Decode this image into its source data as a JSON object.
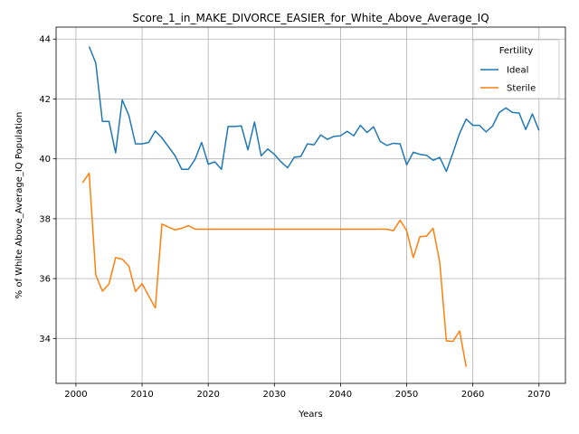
{
  "chart_data": {
    "type": "line",
    "title": "Score_1_in_MAKE_DIVORCE_EASIER_for_White_Above_Average_IQ",
    "xlabel": "Years",
    "ylabel": "% of White Above_Average_IQ Population",
    "xlim": [
      1997,
      2074
    ],
    "ylim": [
      32.5,
      44.4
    ],
    "xticks": [
      2000,
      2010,
      2020,
      2030,
      2040,
      2050,
      2060,
      2070
    ],
    "yticks": [
      34,
      36,
      38,
      40,
      42,
      44
    ],
    "grid": true,
    "legend": {
      "title": "Fertility",
      "placement": "top-right"
    },
    "series": [
      {
        "name": "Ideal",
        "color": "#1f77b4",
        "x": [
          2002,
          2003,
          2004,
          2005,
          2006,
          2007,
          2008,
          2009,
          2010,
          2011,
          2012,
          2013,
          2014,
          2015,
          2016,
          2017,
          2018,
          2019,
          2020,
          2021,
          2022,
          2023,
          2024,
          2025,
          2026,
          2027,
          2028,
          2029,
          2030,
          2031,
          2032,
          2033,
          2034,
          2035,
          2036,
          2037,
          2038,
          2039,
          2040,
          2041,
          2042,
          2043,
          2044,
          2045,
          2046,
          2047,
          2048,
          2049,
          2050,
          2051,
          2052,
          2053,
          2054,
          2055,
          2056,
          2057,
          2058,
          2059,
          2060,
          2061,
          2062,
          2063,
          2064,
          2065,
          2066,
          2067,
          2068,
          2069,
          2070
        ],
        "values": [
          43.75,
          43.2,
          41.25,
          41.25,
          40.2,
          41.97,
          41.45,
          40.5,
          40.5,
          40.55,
          40.93,
          40.7,
          40.4,
          40.1,
          39.65,
          39.65,
          39.98,
          40.55,
          39.82,
          39.9,
          39.65,
          41.08,
          41.08,
          41.1,
          40.3,
          41.23,
          40.1,
          40.33,
          40.15,
          39.9,
          39.7,
          40.05,
          40.08,
          40.5,
          40.47,
          40.8,
          40.65,
          40.75,
          40.77,
          40.92,
          40.77,
          41.12,
          40.88,
          41.07,
          40.58,
          40.45,
          40.52,
          40.5,
          39.8,
          40.22,
          40.15,
          40.12,
          39.95,
          40.05,
          39.58,
          40.2,
          40.85,
          41.33,
          41.12,
          41.12,
          40.9,
          41.1,
          41.55,
          41.7,
          41.55,
          41.53,
          40.98,
          41.5,
          40.95
        ]
      },
      {
        "name": "Sterile",
        "color": "#ff7f0e",
        "x": [
          2001,
          2002,
          2003,
          2004,
          2005,
          2006,
          2007,
          2008,
          2009,
          2010,
          2011,
          2012,
          2013,
          2014,
          2015,
          2016,
          2017,
          2018,
          2019,
          2020,
          2021,
          2022,
          2023,
          2024,
          2025,
          2026,
          2027,
          2028,
          2029,
          2030,
          2031,
          2032,
          2033,
          2034,
          2035,
          2036,
          2037,
          2038,
          2039,
          2040,
          2041,
          2042,
          2043,
          2044,
          2045,
          2046,
          2047,
          2048,
          2049,
          2050,
          2051,
          2052,
          2053,
          2054,
          2055,
          2056,
          2057,
          2058,
          2059
        ],
        "values": [
          39.2,
          39.52,
          36.12,
          35.58,
          35.82,
          36.7,
          36.65,
          36.42,
          35.57,
          35.83,
          35.42,
          35.02,
          37.82,
          37.72,
          37.63,
          37.68,
          37.77,
          37.65,
          37.65,
          37.65,
          37.65,
          37.65,
          37.65,
          37.65,
          37.65,
          37.65,
          37.65,
          37.65,
          37.65,
          37.65,
          37.65,
          37.65,
          37.65,
          37.65,
          37.65,
          37.65,
          37.65,
          37.65,
          37.65,
          37.65,
          37.65,
          37.65,
          37.65,
          37.65,
          37.65,
          37.65,
          37.65,
          37.6,
          37.95,
          37.6,
          36.7,
          37.4,
          37.42,
          37.68,
          36.55,
          33.92,
          33.9,
          34.25,
          33.05
        ]
      }
    ]
  }
}
